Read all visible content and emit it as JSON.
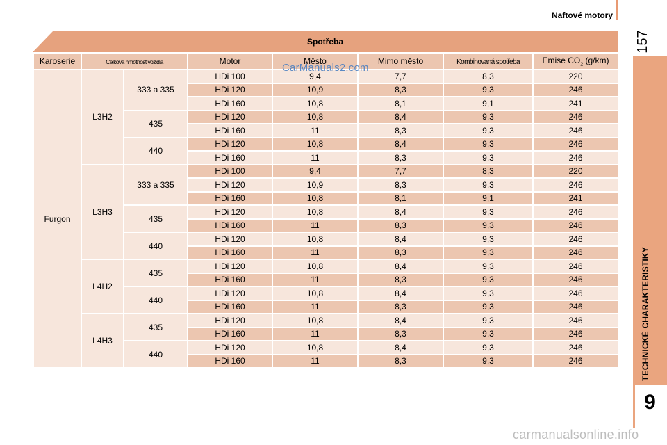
{
  "header": {
    "title": "Naftové motory",
    "page_number": "157"
  },
  "sidebar": {
    "chapter_title": "TECHNICKÉ CHARAKTERISTIKY",
    "chapter_number": "9"
  },
  "table": {
    "title": "Spotřeba",
    "columns": {
      "body": "Karoserie",
      "gross_weight": "Celková hmotnost vozidla",
      "engine": "Motor",
      "urban": "Město",
      "extra_urban": "Mimo město",
      "combined": "Kombinovaná spotřeba",
      "emission_prefix": "Emise CO",
      "emission_sub": "2",
      "emission_unit": " (g/km)"
    },
    "body_type": "Furgon",
    "groups": [
      {
        "version": "L3H2",
        "weights": [
          {
            "weight": "333 a 335",
            "rows": [
              [
                "HDi 100",
                "9,4",
                "7,7",
                "8,3",
                "220"
              ],
              [
                "HDi 120",
                "10,9",
                "8,3",
                "9,3",
                "246"
              ],
              [
                "HDi 160",
                "10,8",
                "8,1",
                "9,1",
                "241"
              ]
            ]
          },
          {
            "weight": "435",
            "rows": [
              [
                "HDi 120",
                "10,8",
                "8,4",
                "9,3",
                "246"
              ],
              [
                "HDi 160",
                "11",
                "8,3",
                "9,3",
                "246"
              ]
            ]
          },
          {
            "weight": "440",
            "rows": [
              [
                "HDi 120",
                "10,8",
                "8,4",
                "9,3",
                "246"
              ],
              [
                "HDi 160",
                "11",
                "8,3",
                "9,3",
                "246"
              ]
            ]
          }
        ]
      },
      {
        "version": "L3H3",
        "weights": [
          {
            "weight": "333 a 335",
            "rows": [
              [
                "HDi 100",
                "9,4",
                "7,7",
                "8,3",
                "220"
              ],
              [
                "HDi 120",
                "10,9",
                "8,3",
                "9,3",
                "246"
              ],
              [
                "HDi 160",
                "10,8",
                "8,1",
                "9,1",
                "241"
              ]
            ]
          },
          {
            "weight": "435",
            "rows": [
              [
                "HDi 120",
                "10,8",
                "8,4",
                "9,3",
                "246"
              ],
              [
                "HDi 160",
                "11",
                "8,3",
                "9,3",
                "246"
              ]
            ]
          },
          {
            "weight": "440",
            "rows": [
              [
                "HDi 120",
                "10,8",
                "8,4",
                "9,3",
                "246"
              ],
              [
                "HDi 160",
                "11",
                "8,3",
                "9,3",
                "246"
              ]
            ]
          }
        ]
      },
      {
        "version": "L4H2",
        "weights": [
          {
            "weight": "435",
            "rows": [
              [
                "HDi 120",
                "10,8",
                "8,4",
                "9,3",
                "246"
              ],
              [
                "HDi 160",
                "11",
                "8,3",
                "9,3",
                "246"
              ]
            ]
          },
          {
            "weight": "440",
            "rows": [
              [
                "HDi 120",
                "10,8",
                "8,4",
                "9,3",
                "246"
              ],
              [
                "HDi 160",
                "11",
                "8,3",
                "9,3",
                "246"
              ]
            ]
          }
        ]
      },
      {
        "version": "L4H3",
        "weights": [
          {
            "weight": "435",
            "rows": [
              [
                "HDi 120",
                "10,8",
                "8,4",
                "9,3",
                "246"
              ],
              [
                "HDi 160",
                "11",
                "8,3",
                "9,3",
                "246"
              ]
            ]
          },
          {
            "weight": "440",
            "rows": [
              [
                "HDi 120",
                "10,8",
                "8,4",
                "9,3",
                "246"
              ],
              [
                "HDi 160",
                "11",
                "8,3",
                "9,3",
                "246"
              ]
            ]
          }
        ]
      }
    ]
  },
  "watermarks": {
    "top": "CarManuals2.com",
    "bottom": "carmanualsonline.info"
  },
  "colors": {
    "accent": "#e89a73",
    "header_cell": "#ecc6b0",
    "light_cell": "#f7e6dc"
  }
}
